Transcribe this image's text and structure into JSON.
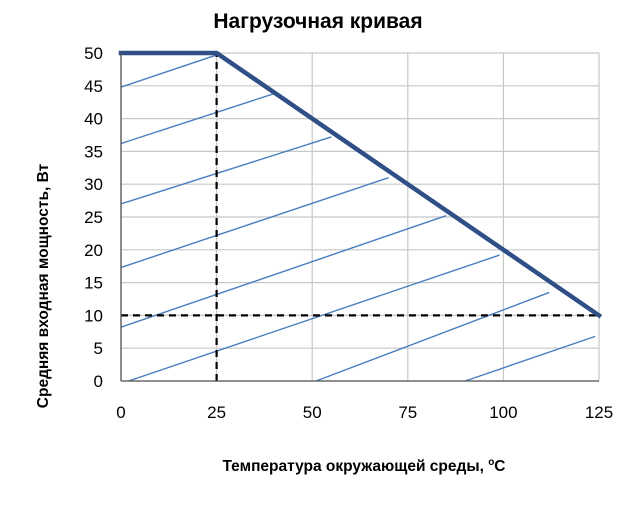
{
  "chart_data": {
    "type": "line",
    "title": "Нагрузочная кривая",
    "xlabel": "Температура окружающей среды, °C",
    "xlabel_main": "Температура окружающей среды, ",
    "xlabel_unit_sup": "o",
    "xlabel_unit": "C",
    "ylabel": "Средняя входная мощность, Вт",
    "xlim": [
      0,
      125
    ],
    "ylim": [
      0,
      50
    ],
    "x_ticks": [
      "0",
      "25",
      "50",
      "75",
      "100",
      "125"
    ],
    "y_ticks": [
      "0",
      "5",
      "10",
      "15",
      "20",
      "25",
      "30",
      "35",
      "40",
      "45",
      "50"
    ],
    "grid": true,
    "series": [
      {
        "role": "derating-curve",
        "color": "#2f4f86",
        "x": [
          0,
          25,
          125
        ],
        "y": [
          50,
          50,
          10
        ]
      }
    ],
    "reference_lines": [
      {
        "role": "vertical-dashed",
        "color": "#000000",
        "x": [
          25,
          25
        ],
        "y": [
          0,
          50
        ]
      },
      {
        "role": "horizontal-dashed",
        "color": "#000000",
        "x": [
          0,
          125
        ],
        "y": [
          10,
          10
        ]
      }
    ],
    "hatch": {
      "color": "#4a7dbf",
      "lines": [
        {
          "x": [
            0,
            25
          ],
          "y": [
            44.8,
            49.7
          ]
        },
        {
          "x": [
            0,
            40
          ],
          "y": [
            36.2,
            43.8
          ]
        },
        {
          "x": [
            0,
            55
          ],
          "y": [
            27,
            37.2
          ]
        },
        {
          "x": [
            0,
            70
          ],
          "y": [
            17.3,
            31
          ]
        },
        {
          "x": [
            0,
            85
          ],
          "y": [
            8.2,
            25.2
          ]
        },
        {
          "x": [
            2,
            99
          ],
          "y": [
            0,
            19.2
          ]
        },
        {
          "x": [
            51,
            112
          ],
          "y": [
            0,
            13.5
          ]
        },
        {
          "x": [
            90,
            124
          ],
          "y": [
            0,
            6.8
          ]
        }
      ]
    }
  }
}
